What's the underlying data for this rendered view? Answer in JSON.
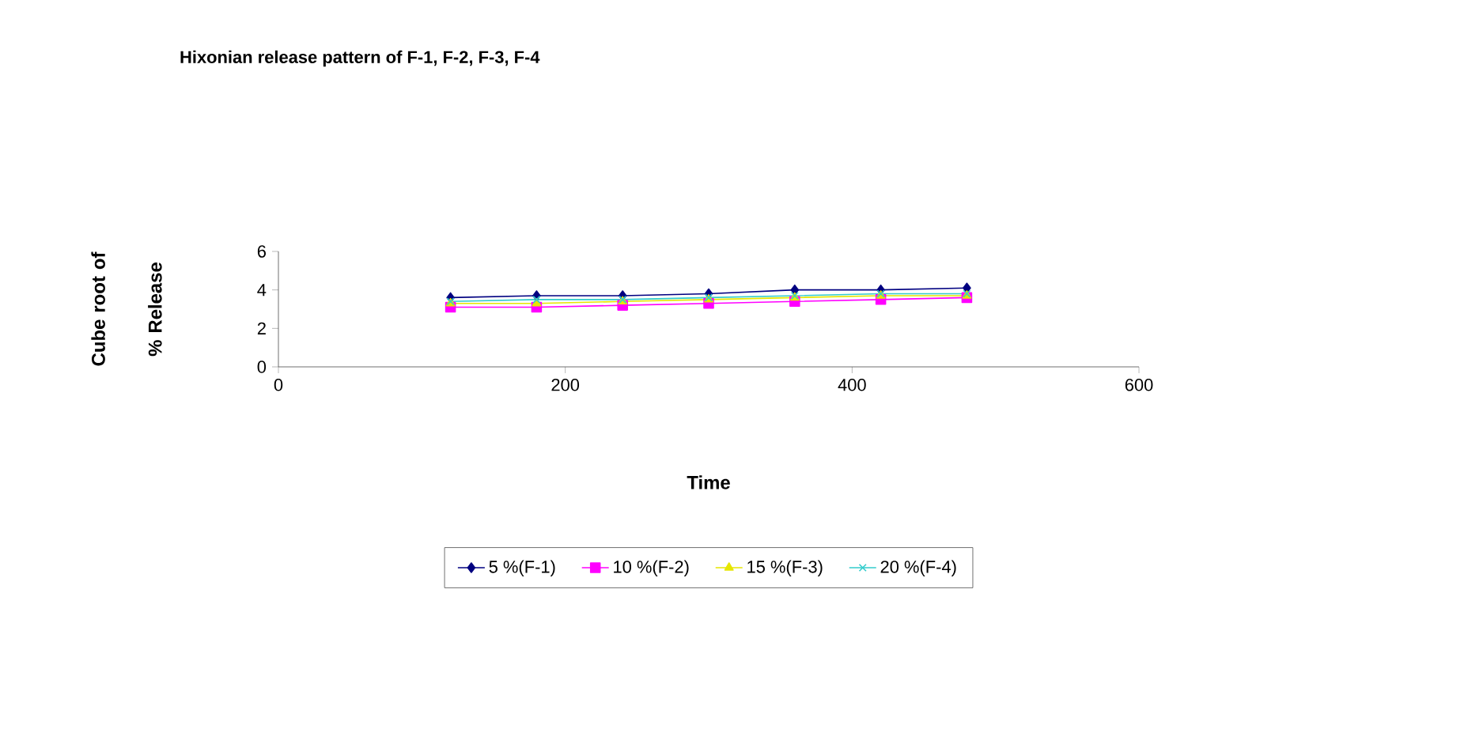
{
  "chart_data": {
    "type": "line",
    "title": "Hixonian release pattern of F-1, F-2, F-3, F-4",
    "xlabel": "Time",
    "ylabel": "Cube root of % Release",
    "xlim": [
      0,
      600
    ],
    "xticks": [
      0,
      200,
      400,
      600
    ],
    "ylim": [
      0,
      6
    ],
    "yticks": [
      0,
      2,
      4,
      6
    ],
    "grid": false,
    "legend": "bottom",
    "series": [
      {
        "name": "5 %(F-1)",
        "color": "#000080",
        "marker": "diamond",
        "x": [
          120,
          180,
          240,
          300,
          360,
          420,
          480
        ],
        "values": [
          3.6,
          3.7,
          3.7,
          3.8,
          4.0,
          4.0,
          4.1
        ]
      },
      {
        "name": "10 %(F-2)",
        "color": "#ff00ff",
        "marker": "square",
        "x": [
          120,
          180,
          240,
          300,
          360,
          420,
          480
        ],
        "values": [
          3.1,
          3.1,
          3.2,
          3.3,
          3.4,
          3.5,
          3.6
        ]
      },
      {
        "name": "15 %(F-3)",
        "color": "#e6e600",
        "marker": "triangle",
        "x": [
          120,
          180,
          240,
          300,
          360,
          420,
          480
        ],
        "values": [
          3.3,
          3.3,
          3.4,
          3.5,
          3.6,
          3.7,
          3.7
        ]
      },
      {
        "name": "20 %(F-4)",
        "color": "#33cccc",
        "marker": "cross",
        "x": [
          120,
          180,
          240,
          300,
          360,
          420,
          480
        ],
        "values": [
          3.4,
          3.5,
          3.5,
          3.6,
          3.7,
          3.8,
          3.8
        ]
      }
    ]
  }
}
